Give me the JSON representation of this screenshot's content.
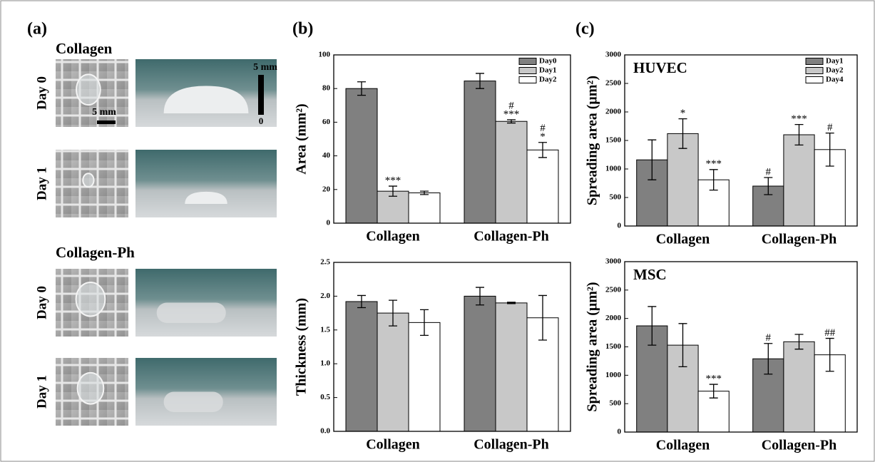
{
  "panel_a": {
    "label": "(a)",
    "groups": [
      {
        "title": "Collagen",
        "rows": [
          {
            "day": "Day 0",
            "scale": "5 mm",
            "side_scale": "5 mm",
            "side_zero": "0"
          },
          {
            "day": "Day 1"
          }
        ]
      },
      {
        "title": "Collagen-Ph",
        "rows": [
          {
            "day": "Day 0"
          },
          {
            "day": "Day 1"
          }
        ]
      }
    ]
  },
  "chart_data": [
    {
      "type": "bar",
      "panel": "(b)",
      "ylabel": "Area (mm²)",
      "categories": [
        "Collagen",
        "Collagen-Ph"
      ],
      "series": [
        {
          "name": "Day0",
          "color": "#808080",
          "values": [
            80,
            84.5
          ],
          "errors": [
            4,
            4.5
          ],
          "significance": [
            null,
            null
          ]
        },
        {
          "name": "Day1",
          "color": "#c8c8c8",
          "values": [
            19,
            60.5
          ],
          "errors": [
            3,
            1
          ],
          "significance": [
            [
              "***"
            ],
            [
              "#",
              "***"
            ]
          ]
        },
        {
          "name": "Day2",
          "color": "#ffffff",
          "values": [
            18,
            43.5
          ],
          "errors": [
            1,
            4.5
          ],
          "significance": [
            null,
            [
              "#",
              "*"
            ]
          ]
        }
      ],
      "ylim": [
        0,
        100
      ],
      "yticks": [
        0,
        20,
        40,
        60,
        80,
        100
      ],
      "legend": "upper right"
    },
    {
      "type": "bar",
      "ylabel": "Thickness (mm)",
      "categories": [
        "Collagen",
        "Collagen-Ph"
      ],
      "series": [
        {
          "color": "#808080",
          "values": [
            1.92,
            2.0
          ],
          "errors": [
            0.09,
            0.13
          ]
        },
        {
          "color": "#c8c8c8",
          "values": [
            1.75,
            1.9
          ],
          "errors": [
            0.19,
            0.01
          ]
        },
        {
          "color": "#ffffff",
          "values": [
            1.61,
            1.68
          ],
          "errors": [
            0.19,
            0.33
          ]
        }
      ],
      "ylim": [
        0,
        2.5
      ],
      "yticks": [
        {
          "value": 0,
          "label": "0.0"
        },
        0.5,
        {
          "value": 1,
          "label": "1.0"
        },
        1.5,
        {
          "value": 2,
          "label": "2.0"
        },
        2.5
      ]
    },
    {
      "type": "bar",
      "panel": "(c)",
      "inset_title": "HUVEC",
      "ylabel": "Spreading area (μm²)",
      "categories": [
        "Collagen",
        "Collagen-Ph"
      ],
      "series": [
        {
          "name": "Day1",
          "color": "#808080",
          "values": [
            1160,
            700
          ],
          "errors": [
            350,
            150
          ],
          "significance": [
            null,
            [
              "#"
            ]
          ]
        },
        {
          "name": "Day2",
          "color": "#c8c8c8",
          "values": [
            1620,
            1600
          ],
          "errors": [
            260,
            180
          ],
          "significance": [
            [
              "*"
            ],
            [
              "***"
            ]
          ]
        },
        {
          "name": "Day4",
          "color": "#ffffff",
          "values": [
            810,
            1340
          ],
          "errors": [
            180,
            290
          ],
          "significance": [
            [
              "***"
            ],
            [
              "#"
            ]
          ]
        }
      ],
      "ylim": [
        0,
        3000
      ],
      "yticks": [
        0,
        500,
        1000,
        1500,
        2000,
        2500,
        3000
      ],
      "legend": "upper right"
    },
    {
      "type": "bar",
      "inset_title": "MSC",
      "ylabel": "Spreading area (μm²)",
      "categories": [
        "Collagen",
        "Collagen-Ph"
      ],
      "series": [
        {
          "color": "#808080",
          "values": [
            1870,
            1290
          ],
          "errors": [
            340,
            270
          ],
          "significance": [
            null,
            [
              "#"
            ]
          ]
        },
        {
          "color": "#c8c8c8",
          "values": [
            1530,
            1590
          ],
          "errors": [
            380,
            130
          ],
          "significance": [
            null,
            null
          ]
        },
        {
          "color": "#ffffff",
          "values": [
            720,
            1360
          ],
          "errors": [
            120,
            290
          ],
          "significance": [
            [
              "***"
            ],
            [
              "##"
            ]
          ]
        }
      ],
      "ylim": [
        0,
        3000
      ],
      "yticks": [
        0,
        500,
        1000,
        1500,
        2000,
        2500,
        3000
      ]
    }
  ]
}
